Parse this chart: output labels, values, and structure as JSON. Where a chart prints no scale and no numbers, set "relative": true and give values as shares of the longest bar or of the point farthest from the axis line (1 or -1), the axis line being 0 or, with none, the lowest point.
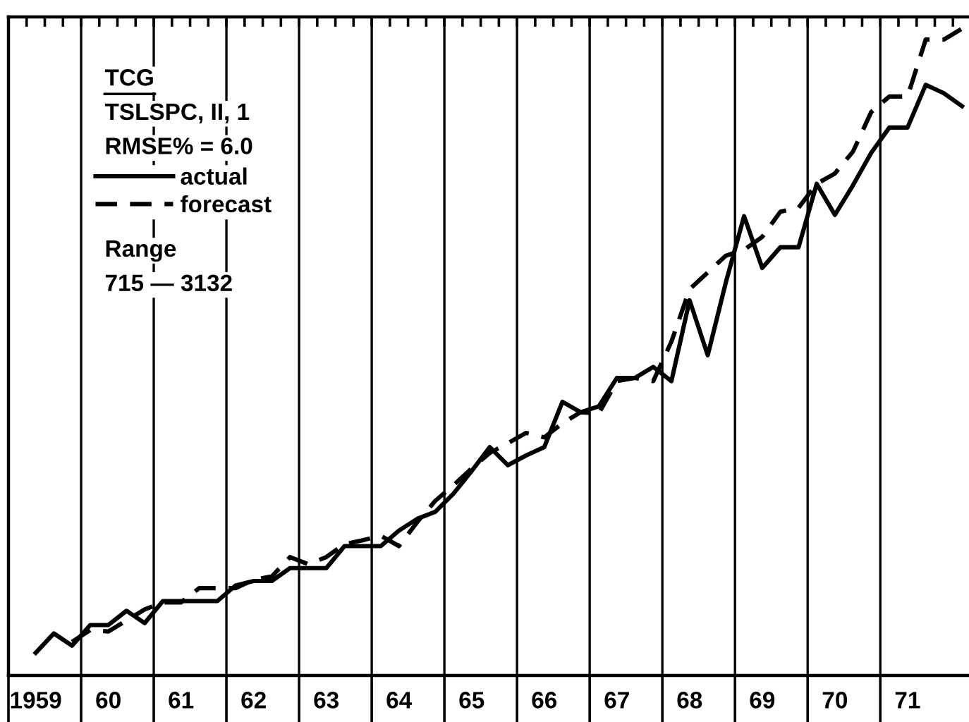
{
  "chart_data": {
    "type": "line",
    "relative": true,
    "title": "TCG",
    "subtitle": "TSLSPC, II, 1",
    "annotations": [
      "RMSE% = 6.0",
      "Range",
      "715 — 3132"
    ],
    "categories": [
      "1959",
      null,
      null,
      null,
      "60",
      null,
      null,
      null,
      "61",
      null,
      null,
      null,
      "62",
      null,
      null,
      null,
      "63",
      null,
      null,
      null,
      "64",
      null,
      null,
      null,
      "65",
      null,
      null,
      null,
      "66",
      null,
      null,
      null,
      "67",
      null,
      null,
      null,
      "68",
      null,
      null,
      null,
      "69",
      null,
      null,
      null,
      "70",
      null,
      null,
      null,
      "71",
      null,
      null,
      null
    ],
    "grid": "x",
    "legend": "top left",
    "marker": "none",
    "series": [
      {
        "name": "actual",
        "color": "#000000",
        "line_style": "solid",
        "values": [
          0.035,
          0.065,
          0.046,
          0.078,
          0.078,
          0.1,
          0.081,
          0.115,
          0.115,
          0.115,
          0.115,
          0.139,
          0.146,
          0.146,
          0.166,
          0.166,
          0.166,
          0.2,
          0.2,
          0.2,
          0.224,
          0.242,
          0.253,
          0.281,
          0.316,
          0.353,
          0.325,
          0.34,
          0.353,
          0.423,
          0.407,
          0.416,
          0.46,
          0.46,
          0.477,
          0.455,
          0.58,
          0.495,
          0.608,
          0.71,
          0.63,
          0.662,
          0.662,
          0.76,
          0.712,
          0.758,
          0.808,
          0.847,
          0.847,
          0.913,
          0.9,
          0.88
        ]
      },
      {
        "name": "forecast",
        "color": "#000000",
        "line_style": "dashed",
        "values": [
          null,
          null,
          0.052,
          0.07,
          0.068,
          0.085,
          0.102,
          0.113,
          0.113,
          0.135,
          0.135,
          0.135,
          0.148,
          0.153,
          0.183,
          0.172,
          0.183,
          0.203,
          0.209,
          0.216,
          0.2,
          0.237,
          0.27,
          0.294,
          0.32,
          0.344,
          0.359,
          0.375,
          0.368,
          0.39,
          0.407,
          0.405,
          0.455,
          0.46,
          0.455,
          0.516,
          0.597,
          0.623,
          0.649,
          0.658,
          0.678,
          0.717,
          0.723,
          0.76,
          0.776,
          0.81,
          0.871,
          0.895,
          0.895,
          0.983,
          0.983,
          1.0
        ]
      }
    ]
  }
}
